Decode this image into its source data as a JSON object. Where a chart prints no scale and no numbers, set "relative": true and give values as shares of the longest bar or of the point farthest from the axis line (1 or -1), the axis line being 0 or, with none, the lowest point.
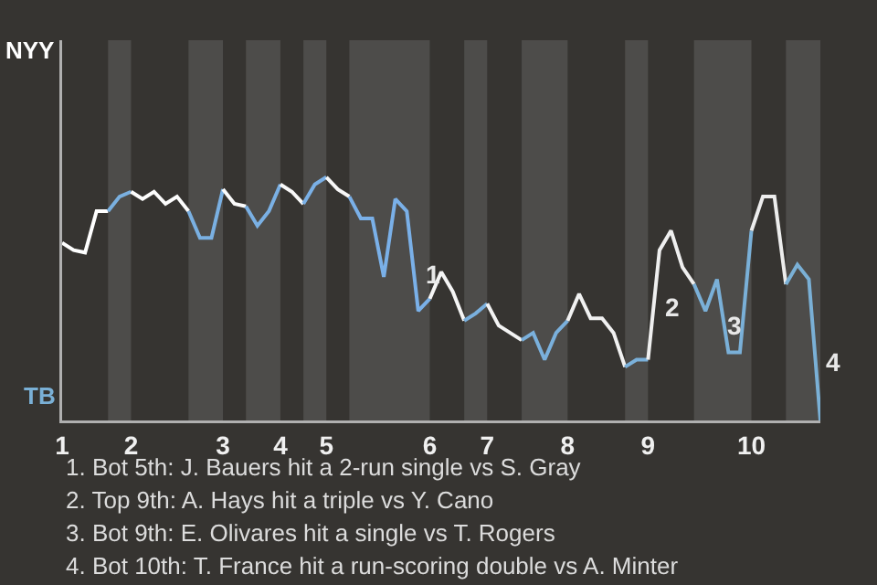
{
  "chart_data": {
    "type": "line",
    "relative": true,
    "categories": [
      "1",
      null,
      null,
      null,
      null,
      null,
      "2",
      null,
      null,
      null,
      null,
      null,
      null,
      null,
      "3",
      null,
      null,
      null,
      null,
      "4",
      null,
      null,
      null,
      "5",
      null,
      null,
      null,
      null,
      null,
      null,
      null,
      null,
      "6",
      null,
      null,
      null,
      null,
      "7",
      null,
      null,
      null,
      null,
      null,
      null,
      "8",
      null,
      null,
      null,
      null,
      null,
      null,
      "9",
      null,
      null,
      null,
      null,
      null,
      null,
      null,
      null,
      "10",
      null,
      null,
      null,
      null,
      null,
      null
    ],
    "legend": false,
    "marker": "none",
    "line_style": "solid",
    "series": [
      {
        "color": "#ffffff",
        "values": [
          0.73,
          0.7,
          0.69,
          0.86,
          0.86,
          null,
          null,
          null,
          null,
          null,
          null,
          null,
          null,
          null,
          null,
          null,
          null,
          null,
          null,
          null,
          null,
          null,
          null,
          null,
          null,
          null,
          null,
          null,
          null,
          null,
          null,
          null,
          null,
          null,
          null,
          null,
          null,
          null,
          null,
          null,
          null,
          null,
          null,
          null,
          null,
          null,
          null,
          null,
          null,
          null,
          null,
          null,
          null,
          null,
          null,
          null,
          null,
          null,
          null,
          null,
          null,
          null,
          null,
          null,
          null,
          null,
          null
        ]
      },
      {
        "color": "#7ab0e0",
        "values": [
          null,
          null,
          null,
          null,
          0.86,
          0.92,
          0.94,
          null,
          null,
          null,
          null,
          null,
          null,
          null,
          null,
          null,
          null,
          null,
          null,
          null,
          null,
          null,
          null,
          null,
          null,
          null,
          null,
          null,
          null,
          null,
          null,
          null,
          null,
          null,
          null,
          null,
          null,
          null,
          null,
          null,
          null,
          null,
          null,
          null,
          null,
          null,
          null,
          null,
          null,
          null,
          null,
          null,
          null,
          null,
          null,
          null,
          null,
          null,
          null,
          null,
          null,
          null,
          null,
          null,
          null,
          null,
          null
        ]
      },
      {
        "color": "#fdfdfd",
        "values": [
          null,
          null,
          null,
          null,
          null,
          null,
          0.94,
          0.91,
          0.94,
          0.89,
          0.92,
          0.86,
          null,
          null,
          null,
          null,
          null,
          null,
          null,
          null,
          null,
          null,
          null,
          null,
          null,
          null,
          null,
          null,
          null,
          null,
          null,
          null,
          null,
          null,
          null,
          null,
          null,
          null,
          null,
          null,
          null,
          null,
          null,
          null,
          null,
          null,
          null,
          null,
          null,
          null,
          null,
          null,
          null,
          null,
          null,
          null,
          null,
          null,
          null,
          null,
          null,
          null,
          null,
          null,
          null,
          null,
          null
        ]
      },
      {
        "color": "#7ab0e2",
        "values": [
          null,
          null,
          null,
          null,
          null,
          null,
          null,
          null,
          null,
          null,
          null,
          0.86,
          0.75,
          0.75,
          0.95,
          null,
          null,
          null,
          null,
          null,
          null,
          null,
          null,
          null,
          null,
          null,
          null,
          null,
          null,
          null,
          null,
          null,
          null,
          null,
          null,
          null,
          null,
          null,
          null,
          null,
          null,
          null,
          null,
          null,
          null,
          null,
          null,
          null,
          null,
          null,
          null,
          null,
          null,
          null,
          null,
          null,
          null,
          null,
          null,
          null,
          null,
          null,
          null,
          null,
          null,
          null,
          null
        ]
      },
      {
        "color": "#fbfbfb",
        "values": [
          null,
          null,
          null,
          null,
          null,
          null,
          null,
          null,
          null,
          null,
          null,
          null,
          null,
          null,
          0.95,
          0.89,
          0.88,
          null,
          null,
          null,
          null,
          null,
          null,
          null,
          null,
          null,
          null,
          null,
          null,
          null,
          null,
          null,
          null,
          null,
          null,
          null,
          null,
          null,
          null,
          null,
          null,
          null,
          null,
          null,
          null,
          null,
          null,
          null,
          null,
          null,
          null,
          null,
          null,
          null,
          null,
          null,
          null,
          null,
          null,
          null,
          null,
          null,
          null,
          null,
          null,
          null,
          null
        ]
      },
      {
        "color": "#7ab0e4",
        "values": [
          null,
          null,
          null,
          null,
          null,
          null,
          null,
          null,
          null,
          null,
          null,
          null,
          null,
          null,
          null,
          null,
          0.88,
          0.8,
          0.86,
          0.97,
          null,
          null,
          null,
          null,
          null,
          null,
          null,
          null,
          null,
          null,
          null,
          null,
          null,
          null,
          null,
          null,
          null,
          null,
          null,
          null,
          null,
          null,
          null,
          null,
          null,
          null,
          null,
          null,
          null,
          null,
          null,
          null,
          null,
          null,
          null,
          null,
          null,
          null,
          null,
          null,
          null,
          null,
          null,
          null,
          null,
          null,
          null
        ]
      },
      {
        "color": "#f9f9f9",
        "values": [
          null,
          null,
          null,
          null,
          null,
          null,
          null,
          null,
          null,
          null,
          null,
          null,
          null,
          null,
          null,
          null,
          null,
          null,
          null,
          0.97,
          0.94,
          0.89,
          null,
          null,
          null,
          null,
          null,
          null,
          null,
          null,
          null,
          null,
          null,
          null,
          null,
          null,
          null,
          null,
          null,
          null,
          null,
          null,
          null,
          null,
          null,
          null,
          null,
          null,
          null,
          null,
          null,
          null,
          null,
          null,
          null,
          null,
          null,
          null,
          null,
          null,
          null,
          null,
          null,
          null,
          null,
          null,
          null
        ]
      },
      {
        "color": "#7ab0e6",
        "values": [
          null,
          null,
          null,
          null,
          null,
          null,
          null,
          null,
          null,
          null,
          null,
          null,
          null,
          null,
          null,
          null,
          null,
          null,
          null,
          null,
          null,
          0.89,
          0.97,
          1,
          null,
          null,
          null,
          null,
          null,
          null,
          null,
          null,
          null,
          null,
          null,
          null,
          null,
          null,
          null,
          null,
          null,
          null,
          null,
          null,
          null,
          null,
          null,
          null,
          null,
          null,
          null,
          null,
          null,
          null,
          null,
          null,
          null,
          null,
          null,
          null,
          null,
          null,
          null,
          null,
          null,
          null,
          null
        ]
      },
      {
        "color": "#f7f7f7",
        "values": [
          null,
          null,
          null,
          null,
          null,
          null,
          null,
          null,
          null,
          null,
          null,
          null,
          null,
          null,
          null,
          null,
          null,
          null,
          null,
          null,
          null,
          null,
          null,
          1,
          0.95,
          0.92,
          null,
          null,
          null,
          null,
          null,
          null,
          null,
          null,
          null,
          null,
          null,
          null,
          null,
          null,
          null,
          null,
          null,
          null,
          null,
          null,
          null,
          null,
          null,
          null,
          null,
          null,
          null,
          null,
          null,
          null,
          null,
          null,
          null,
          null,
          null,
          null,
          null,
          null,
          null,
          null,
          null
        ]
      },
      {
        "color": "#7ab0e8",
        "values": [
          null,
          null,
          null,
          null,
          null,
          null,
          null,
          null,
          null,
          null,
          null,
          null,
          null,
          null,
          null,
          null,
          null,
          null,
          null,
          null,
          null,
          null,
          null,
          null,
          null,
          0.92,
          0.83,
          0.83,
          0.59,
          0.91,
          0.86,
          0.45,
          0.5,
          null,
          null,
          null,
          null,
          null,
          null,
          null,
          null,
          null,
          null,
          null,
          null,
          null,
          null,
          null,
          null,
          null,
          null,
          null,
          null,
          null,
          null,
          null,
          null,
          null,
          null,
          null,
          null,
          null,
          null,
          null,
          null,
          null,
          null
        ]
      },
      {
        "color": "#f5f5f5",
        "values": [
          null,
          null,
          null,
          null,
          null,
          null,
          null,
          null,
          null,
          null,
          null,
          null,
          null,
          null,
          null,
          null,
          null,
          null,
          null,
          null,
          null,
          null,
          null,
          null,
          null,
          null,
          null,
          null,
          null,
          null,
          null,
          null,
          0.5,
          0.61,
          0.53,
          0.41,
          null,
          null,
          null,
          null,
          null,
          null,
          null,
          null,
          null,
          null,
          null,
          null,
          null,
          null,
          null,
          null,
          null,
          null,
          null,
          null,
          null,
          null,
          null,
          null,
          null,
          null,
          null,
          null,
          null,
          null,
          null
        ]
      },
      {
        "color": "#7ab0de",
        "values": [
          null,
          null,
          null,
          null,
          null,
          null,
          null,
          null,
          null,
          null,
          null,
          null,
          null,
          null,
          null,
          null,
          null,
          null,
          null,
          null,
          null,
          null,
          null,
          null,
          null,
          null,
          null,
          null,
          null,
          null,
          null,
          null,
          null,
          null,
          null,
          0.41,
          0.44,
          0.48,
          null,
          null,
          null,
          null,
          null,
          null,
          null,
          null,
          null,
          null,
          null,
          null,
          null,
          null,
          null,
          null,
          null,
          null,
          null,
          null,
          null,
          null,
          null,
          null,
          null,
          null,
          null,
          null,
          null
        ]
      },
      {
        "color": "#f3f3f3",
        "values": [
          null,
          null,
          null,
          null,
          null,
          null,
          null,
          null,
          null,
          null,
          null,
          null,
          null,
          null,
          null,
          null,
          null,
          null,
          null,
          null,
          null,
          null,
          null,
          null,
          null,
          null,
          null,
          null,
          null,
          null,
          null,
          null,
          null,
          null,
          null,
          null,
          null,
          0.48,
          0.39,
          0.36,
          0.33,
          null,
          null,
          null,
          null,
          null,
          null,
          null,
          null,
          null,
          null,
          null,
          null,
          null,
          null,
          null,
          null,
          null,
          null,
          null,
          null,
          null,
          null,
          null,
          null,
          null,
          null
        ]
      },
      {
        "color": "#7ab0dc",
        "values": [
          null,
          null,
          null,
          null,
          null,
          null,
          null,
          null,
          null,
          null,
          null,
          null,
          null,
          null,
          null,
          null,
          null,
          null,
          null,
          null,
          null,
          null,
          null,
          null,
          null,
          null,
          null,
          null,
          null,
          null,
          null,
          null,
          null,
          null,
          null,
          null,
          null,
          null,
          null,
          null,
          0.33,
          0.36,
          0.25,
          0.36,
          0.41,
          null,
          null,
          null,
          null,
          null,
          null,
          null,
          null,
          null,
          null,
          null,
          null,
          null,
          null,
          null,
          null,
          null,
          null,
          null,
          null,
          null,
          null
        ]
      },
      {
        "color": "#f1f1f1",
        "values": [
          null,
          null,
          null,
          null,
          null,
          null,
          null,
          null,
          null,
          null,
          null,
          null,
          null,
          null,
          null,
          null,
          null,
          null,
          null,
          null,
          null,
          null,
          null,
          null,
          null,
          null,
          null,
          null,
          null,
          null,
          null,
          null,
          null,
          null,
          null,
          null,
          null,
          null,
          null,
          null,
          null,
          null,
          null,
          null,
          0.41,
          0.52,
          0.42,
          0.42,
          0.36,
          0.22,
          null,
          null,
          null,
          null,
          null,
          null,
          null,
          null,
          null,
          null,
          null,
          null,
          null,
          null,
          null,
          null,
          null
        ]
      },
      {
        "color": "#7ab0da",
        "values": [
          null,
          null,
          null,
          null,
          null,
          null,
          null,
          null,
          null,
          null,
          null,
          null,
          null,
          null,
          null,
          null,
          null,
          null,
          null,
          null,
          null,
          null,
          null,
          null,
          null,
          null,
          null,
          null,
          null,
          null,
          null,
          null,
          null,
          null,
          null,
          null,
          null,
          null,
          null,
          null,
          null,
          null,
          null,
          null,
          null,
          null,
          null,
          null,
          null,
          0.22,
          0.25,
          0.25,
          null,
          null,
          null,
          null,
          null,
          null,
          null,
          null,
          null,
          null,
          null,
          null,
          null,
          null,
          null
        ]
      },
      {
        "color": "#efefef",
        "values": [
          null,
          null,
          null,
          null,
          null,
          null,
          null,
          null,
          null,
          null,
          null,
          null,
          null,
          null,
          null,
          null,
          null,
          null,
          null,
          null,
          null,
          null,
          null,
          null,
          null,
          null,
          null,
          null,
          null,
          null,
          null,
          null,
          null,
          null,
          null,
          null,
          null,
          null,
          null,
          null,
          null,
          null,
          null,
          null,
          null,
          null,
          null,
          null,
          null,
          null,
          null,
          0.25,
          0.7,
          0.78,
          0.63,
          0.56,
          null,
          null,
          null,
          null,
          null,
          null,
          null,
          null,
          null,
          null,
          null
        ]
      },
      {
        "color": "#7ab0d8",
        "values": [
          null,
          null,
          null,
          null,
          null,
          null,
          null,
          null,
          null,
          null,
          null,
          null,
          null,
          null,
          null,
          null,
          null,
          null,
          null,
          null,
          null,
          null,
          null,
          null,
          null,
          null,
          null,
          null,
          null,
          null,
          null,
          null,
          null,
          null,
          null,
          null,
          null,
          null,
          null,
          null,
          null,
          null,
          null,
          null,
          null,
          null,
          null,
          null,
          null,
          null,
          null,
          null,
          null,
          null,
          null,
          0.56,
          0.45,
          0.58,
          0.28,
          0.28,
          0.78,
          null,
          null,
          null,
          null,
          null,
          null
        ]
      },
      {
        "color": "#ededed",
        "values": [
          null,
          null,
          null,
          null,
          null,
          null,
          null,
          null,
          null,
          null,
          null,
          null,
          null,
          null,
          null,
          null,
          null,
          null,
          null,
          null,
          null,
          null,
          null,
          null,
          null,
          null,
          null,
          null,
          null,
          null,
          null,
          null,
          null,
          null,
          null,
          null,
          null,
          null,
          null,
          null,
          null,
          null,
          null,
          null,
          null,
          null,
          null,
          null,
          null,
          null,
          null,
          null,
          null,
          null,
          null,
          null,
          null,
          null,
          null,
          null,
          0.78,
          0.92,
          0.92,
          0.56,
          null,
          null,
          null
        ]
      },
      {
        "color": "#7ab0d6",
        "values": [
          null,
          null,
          null,
          null,
          null,
          null,
          null,
          null,
          null,
          null,
          null,
          null,
          null,
          null,
          null,
          null,
          null,
          null,
          null,
          null,
          null,
          null,
          null,
          null,
          null,
          null,
          null,
          null,
          null,
          null,
          null,
          null,
          null,
          null,
          null,
          null,
          null,
          null,
          null,
          null,
          null,
          null,
          null,
          null,
          null,
          null,
          null,
          null,
          null,
          null,
          null,
          null,
          null,
          null,
          null,
          null,
          null,
          null,
          null,
          null,
          null,
          null,
          null,
          0.56,
          0.64,
          0.58,
          0
        ]
      }
    ],
    "annotations": [
      "NYY",
      "TB",
      "1",
      "2",
      "3",
      "4",
      "1. Bot 5th: J. Bauers hit a 2-run single vs S. Gray",
      "2. Top 9th: A. Hays hit a triple vs Y. Cano",
      "3. Bot 9th: E. Olivares hit a single vs T. Rogers",
      "4. Bot 10th: T. France hit a run-scoring double vs A. Minter"
    ]
  }
}
